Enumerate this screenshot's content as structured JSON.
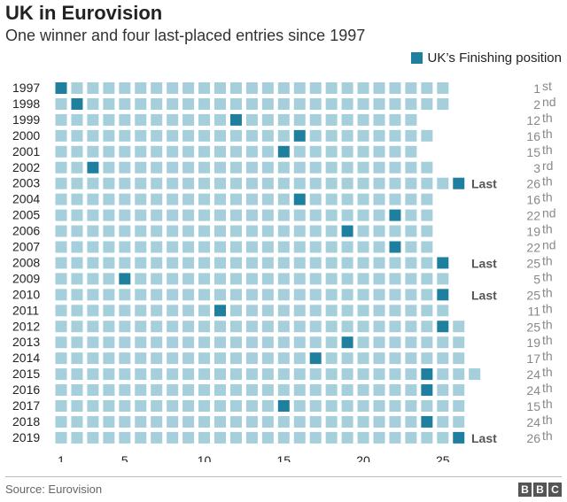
{
  "title": "UK in Eurovision",
  "subtitle": "One winner and four last-placed entries since 1997",
  "legend": {
    "label": "UK’s Finishing position"
  },
  "source": "Source: Eurovision",
  "logo": [
    "B",
    "B",
    "C"
  ],
  "colors": {
    "entry": "#a4cfdb",
    "uk": "#1f7f9e",
    "text": "#222222",
    "position": "#888888",
    "last": "#555555"
  },
  "chart_data": {
    "type": "table",
    "title": "UK in Eurovision",
    "x_ticks": [
      1,
      5,
      10,
      15,
      20,
      25
    ],
    "rows": [
      {
        "year": "1997",
        "entries": 25,
        "uk": 1,
        "pos_num": "1",
        "pos_suf": "st",
        "last": ""
      },
      {
        "year": "1998",
        "entries": 25,
        "uk": 2,
        "pos_num": "2",
        "pos_suf": "nd",
        "last": ""
      },
      {
        "year": "1999",
        "entries": 23,
        "uk": 12,
        "pos_num": "12",
        "pos_suf": "th",
        "last": ""
      },
      {
        "year": "2000",
        "entries": 24,
        "uk": 16,
        "pos_num": "16",
        "pos_suf": "th",
        "last": ""
      },
      {
        "year": "2001",
        "entries": 23,
        "uk": 15,
        "pos_num": "15",
        "pos_suf": "th",
        "last": ""
      },
      {
        "year": "2002",
        "entries": 24,
        "uk": 3,
        "pos_num": "3",
        "pos_suf": "rd",
        "last": ""
      },
      {
        "year": "2003",
        "entries": 26,
        "uk": 26,
        "pos_num": "26",
        "pos_suf": "th",
        "last": "Last"
      },
      {
        "year": "2004",
        "entries": 24,
        "uk": 16,
        "pos_num": "16",
        "pos_suf": "th",
        "last": ""
      },
      {
        "year": "2005",
        "entries": 24,
        "uk": 22,
        "pos_num": "22",
        "pos_suf": "nd",
        "last": ""
      },
      {
        "year": "2006",
        "entries": 24,
        "uk": 19,
        "pos_num": "19",
        "pos_suf": "th",
        "last": ""
      },
      {
        "year": "2007",
        "entries": 24,
        "uk": 22,
        "pos_num": "22",
        "pos_suf": "nd",
        "last": ""
      },
      {
        "year": "2008",
        "entries": 25,
        "uk": 25,
        "pos_num": "25",
        "pos_suf": "th",
        "last": "Last"
      },
      {
        "year": "2009",
        "entries": 25,
        "uk": 5,
        "pos_num": "5",
        "pos_suf": "th",
        "last": ""
      },
      {
        "year": "2010",
        "entries": 25,
        "uk": 25,
        "pos_num": "25",
        "pos_suf": "th",
        "last": "Last"
      },
      {
        "year": "2011",
        "entries": 25,
        "uk": 11,
        "pos_num": "11",
        "pos_suf": "th",
        "last": ""
      },
      {
        "year": "2012",
        "entries": 26,
        "uk": 25,
        "pos_num": "25",
        "pos_suf": "th",
        "last": ""
      },
      {
        "year": "2013",
        "entries": 26,
        "uk": 19,
        "pos_num": "19",
        "pos_suf": "th",
        "last": ""
      },
      {
        "year": "2014",
        "entries": 26,
        "uk": 17,
        "pos_num": "17",
        "pos_suf": "th",
        "last": ""
      },
      {
        "year": "2015",
        "entries": 27,
        "uk": 24,
        "pos_num": "24",
        "pos_suf": "th",
        "last": ""
      },
      {
        "year": "2016",
        "entries": 26,
        "uk": 24,
        "pos_num": "24",
        "pos_suf": "th",
        "last": ""
      },
      {
        "year": "2017",
        "entries": 26,
        "uk": 15,
        "pos_num": "15",
        "pos_suf": "th",
        "last": ""
      },
      {
        "year": "2018",
        "entries": 26,
        "uk": 24,
        "pos_num": "24",
        "pos_suf": "th",
        "last": ""
      },
      {
        "year": "2019",
        "entries": 26,
        "uk": 26,
        "pos_num": "26",
        "pos_suf": "th",
        "last": "Last"
      }
    ]
  }
}
